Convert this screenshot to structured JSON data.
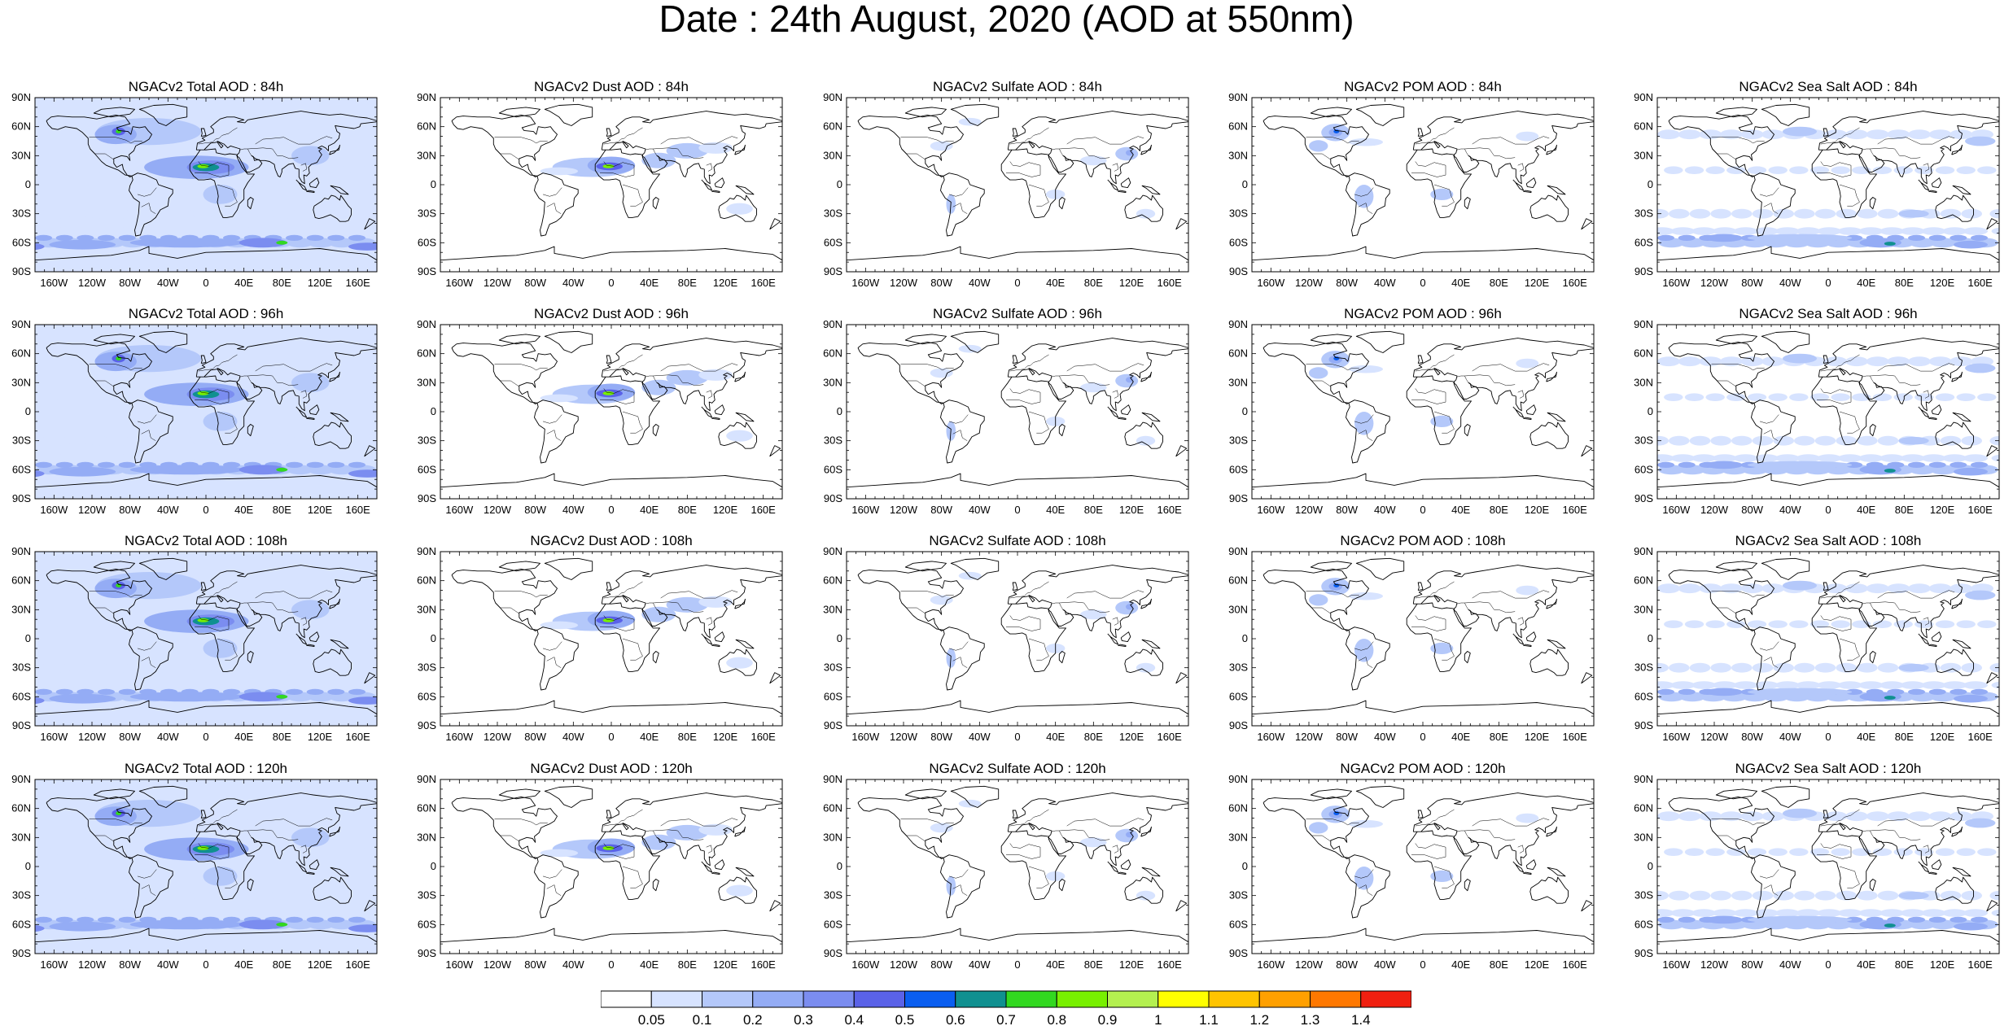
{
  "title": "Date : 24th August, 2020 (AOD at 550nm)",
  "colorbar": {
    "labels": [
      "0.05",
      "0.1",
      "0.2",
      "0.3",
      "0.4",
      "0.5",
      "0.6",
      "0.7",
      "0.8",
      "0.9",
      "1",
      "1.1",
      "1.2",
      "1.3",
      "1.4"
    ],
    "colors": [
      "#ffffff",
      "#d7e3ff",
      "#b4c8fa",
      "#94acf5",
      "#7b8df0",
      "#5a62e8",
      "#0a5ef0",
      "#109090",
      "#32d820",
      "#78f000",
      "#b4f050",
      "#ffff00",
      "#ffc400",
      "#ffa000",
      "#ff7800",
      "#f02010"
    ]
  },
  "lat_ticks": [
    "90N",
    "60N",
    "30N",
    "0",
    "30S",
    "60S",
    "90S"
  ],
  "lon_ticks": [
    "160W",
    "120W",
    "80W",
    "40W",
    "0",
    "40E",
    "80E",
    "120E",
    "160E"
  ],
  "panels": [
    [
      "NGACv2 Total AOD : 84h",
      "NGACv2 Dust AOD : 84h",
      "NGACv2 Sulfate AOD : 84h",
      "NGACv2 POM AOD : 84h",
      "NGACv2 Sea Salt AOD : 84h"
    ],
    [
      "NGACv2 Total AOD : 96h",
      "NGACv2 Dust AOD : 96h",
      "NGACv2 Sulfate AOD : 96h",
      "NGACv2 POM AOD : 96h",
      "NGACv2 Sea Salt AOD : 96h"
    ],
    [
      "NGACv2 Total AOD : 108h",
      "NGACv2 Dust AOD : 108h",
      "NGACv2 Sulfate AOD : 108h",
      "NGACv2 POM AOD : 108h",
      "NGACv2 Sea Salt AOD : 108h"
    ],
    [
      "NGACv2 Total AOD : 120h",
      "NGACv2 Dust AOD : 120h",
      "NGACv2 Sulfate AOD : 120h",
      "NGACv2 POM AOD : 120h",
      "NGACv2 Sea Salt  AOD : 120h"
    ]
  ],
  "panel_types": [
    "total",
    "dust",
    "sulfate",
    "pom",
    "seasalt"
  ]
}
